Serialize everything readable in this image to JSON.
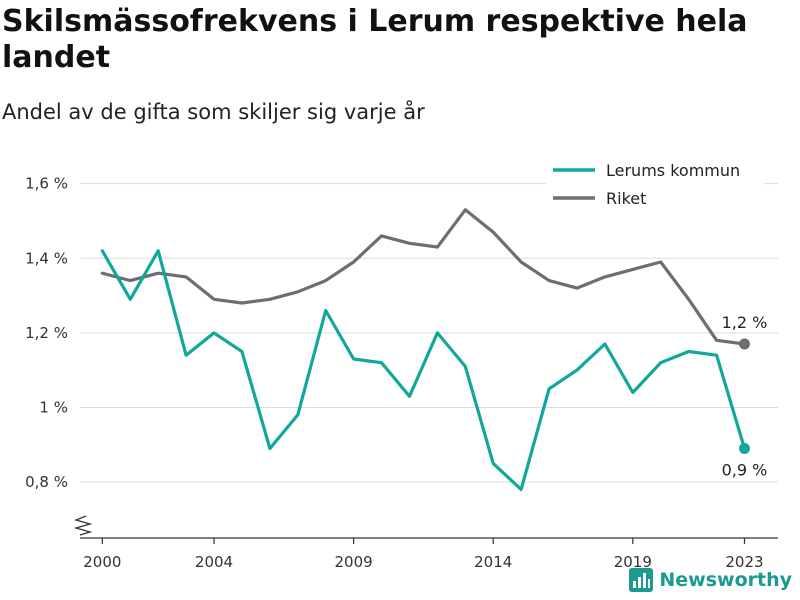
{
  "title": "Skilsmässofrekvens i Lerum respektive hela landet",
  "subtitle": "Andel av de gifta som skiljer sig varje år",
  "brand": {
    "name": "Newsworthy",
    "icon": "newsworthy-logo-icon",
    "color": "#1a9a91"
  },
  "chart_data": {
    "type": "line",
    "ylim": [
      0.65,
      1.65
    ],
    "xlim": [
      1999.2,
      2024.2
    ],
    "yticks": [
      {
        "value": 0.8,
        "label": "0,8 %"
      },
      {
        "value": 1.0,
        "label": "1 %"
      },
      {
        "value": 1.2,
        "label": "1,2 %"
      },
      {
        "value": 1.4,
        "label": "1,4 %"
      },
      {
        "value": 1.6,
        "label": "1,6 %"
      }
    ],
    "xticks": [
      {
        "value": 2000,
        "label": "2000"
      },
      {
        "value": 2004,
        "label": "2004"
      },
      {
        "value": 2009,
        "label": "2009"
      },
      {
        "value": 2014,
        "label": "2014"
      },
      {
        "value": 2019,
        "label": "2019"
      },
      {
        "value": 2023,
        "label": "2023"
      }
    ],
    "x": [
      2000,
      2001,
      2002,
      2003,
      2004,
      2005,
      2006,
      2007,
      2008,
      2009,
      2010,
      2011,
      2012,
      2013,
      2014,
      2015,
      2016,
      2017,
      2018,
      2019,
      2020,
      2021,
      2022,
      2023
    ],
    "series": [
      {
        "name": "Lerums kommun",
        "color": "#11a89b",
        "values": [
          1.42,
          1.29,
          1.42,
          1.14,
          1.2,
          1.15,
          0.89,
          0.98,
          1.26,
          1.13,
          1.12,
          1.03,
          1.2,
          1.11,
          0.85,
          0.78,
          1.05,
          1.1,
          1.17,
          1.04,
          1.12,
          1.15,
          1.14,
          0.89
        ],
        "end_label": "0,9 %",
        "end_label_position": "below"
      },
      {
        "name": "Riket",
        "color": "#6e6e72",
        "values": [
          1.36,
          1.34,
          1.36,
          1.35,
          1.29,
          1.28,
          1.29,
          1.31,
          1.34,
          1.39,
          1.46,
          1.44,
          1.43,
          1.53,
          1.47,
          1.39,
          1.34,
          1.32,
          1.35,
          1.37,
          1.39,
          1.29,
          1.18,
          1.17
        ],
        "end_label": "1,2 %",
        "end_label_position": "above"
      }
    ],
    "grid": true,
    "axis_break": true,
    "legend_position": "top-right"
  }
}
